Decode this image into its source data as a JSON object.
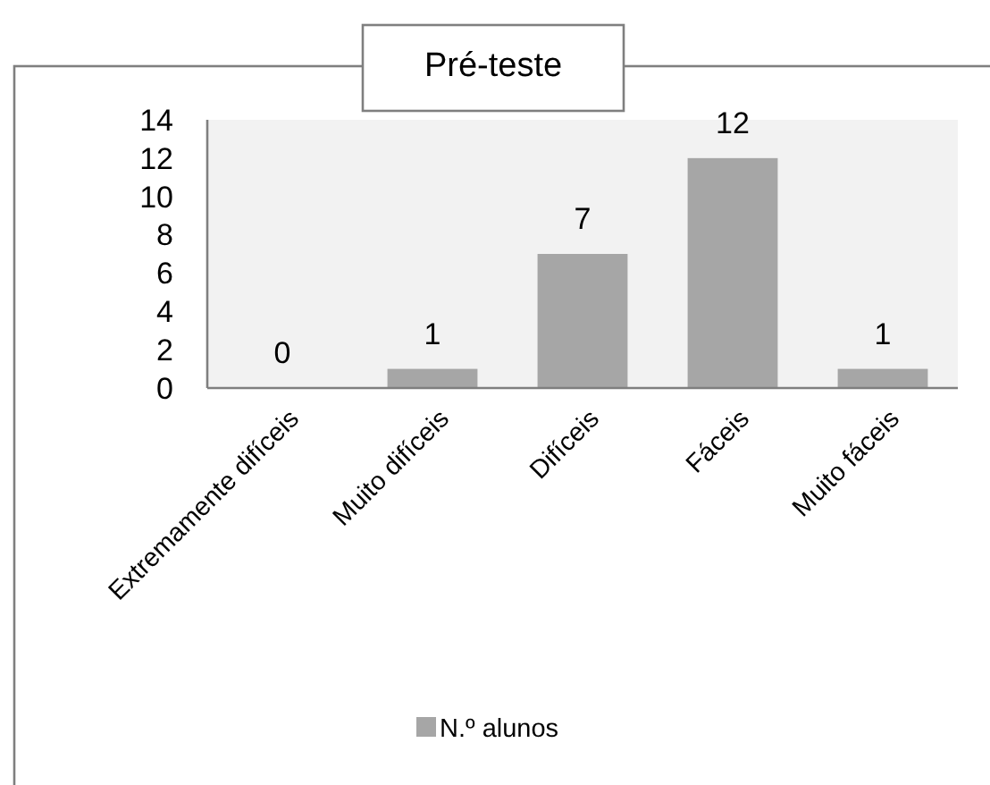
{
  "chart_data": {
    "type": "bar",
    "title": "Pré-teste",
    "categories": [
      "Extremamente difíceis",
      "Muito difíceis",
      "Difíceis",
      "Fáceis",
      "Muito fáceis"
    ],
    "series": [
      {
        "name": "N.º alunos",
        "color": "#a6a6a6",
        "values": [
          0,
          1,
          7,
          12,
          1
        ]
      }
    ],
    "ylim": [
      0,
      14
    ],
    "yticks": [
      0,
      2,
      4,
      6,
      8,
      10,
      12,
      14
    ],
    "data_labels": true,
    "legend": "bottom",
    "grid": false
  }
}
